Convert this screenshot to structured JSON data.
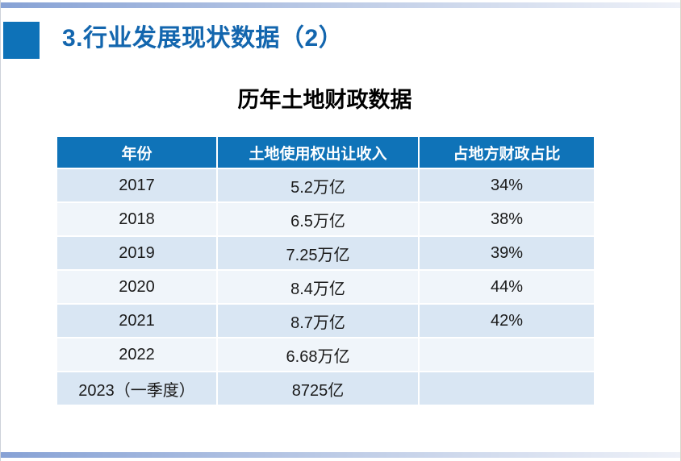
{
  "slide_title": "3.行业发展现状数据（2）",
  "table_title": "历年土地财政数据",
  "table": {
    "headers": [
      "年份",
      "土地使用权出让收入",
      "占地方财政占比"
    ],
    "rows": [
      [
        "2017",
        "5.2万亿",
        "34%"
      ],
      [
        "2018",
        "6.5万亿",
        "38%"
      ],
      [
        "2019",
        "7.25万亿",
        "39%"
      ],
      [
        "2020",
        "8.4万亿",
        "44%"
      ],
      [
        "2021",
        "8.7万亿",
        "42%"
      ],
      [
        "2022",
        "6.68万亿",
        ""
      ],
      [
        "2023（一季度）",
        "8725亿",
        ""
      ]
    ]
  },
  "chart_data": {
    "type": "table",
    "title": "历年土地财政数据",
    "columns": [
      "年份",
      "土地使用权出让收入",
      "占地方财政占比"
    ],
    "rows": [
      {
        "year": "2017",
        "income": "5.2万亿",
        "share_of_local_finance": "34%"
      },
      {
        "year": "2018",
        "income": "6.5万亿",
        "share_of_local_finance": "38%"
      },
      {
        "year": "2019",
        "income": "7.25万亿",
        "share_of_local_finance": "39%"
      },
      {
        "year": "2020",
        "income": "8.4万亿",
        "share_of_local_finance": "44%"
      },
      {
        "year": "2021",
        "income": "8.7万亿",
        "share_of_local_finance": "42%"
      },
      {
        "year": "2022",
        "income": "6.68万亿",
        "share_of_local_finance": ""
      },
      {
        "year": "2023（一季度）",
        "income": "8725亿",
        "share_of_local_finance": ""
      }
    ]
  },
  "colors": {
    "accent_blue": "#0e72b8",
    "title_text": "#1366ae",
    "header_bg": "#0f73b8",
    "row_alt_blue": "#d9e6f3",
    "row_alt_white": "#f0f5fa",
    "body_text": "#1a1a1a",
    "bar_start": "#87a2d5",
    "bar_mid": "#c3d0e8",
    "bar_end": "#eef1f8"
  }
}
